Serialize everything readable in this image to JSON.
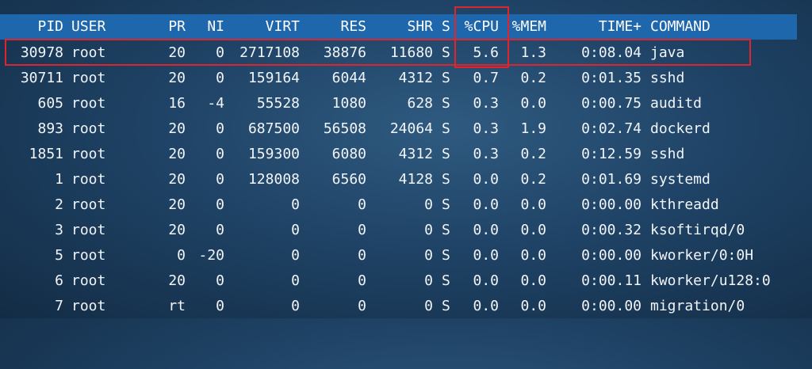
{
  "top": {
    "headers": {
      "pid": "PID",
      "user": "USER",
      "pr": "PR",
      "ni": "NI",
      "virt": "VIRT",
      "res": "RES",
      "shr": "SHR",
      "s": "S",
      "cpu": "%CPU",
      "mem": "%MEM",
      "time": "TIME+",
      "command": "COMMAND"
    },
    "rows": [
      {
        "pid": "30978",
        "user": "root",
        "pr": "20",
        "ni": "0",
        "virt": "2717108",
        "res": "38876",
        "shr": "11680",
        "s": "S",
        "cpu": "5.6",
        "mem": "1.3",
        "time": "0:08.04",
        "command": "java"
      },
      {
        "pid": "30711",
        "user": "root",
        "pr": "20",
        "ni": "0",
        "virt": "159164",
        "res": "6044",
        "shr": "4312",
        "s": "S",
        "cpu": "0.7",
        "mem": "0.2",
        "time": "0:01.35",
        "command": "sshd"
      },
      {
        "pid": "605",
        "user": "root",
        "pr": "16",
        "ni": "-4",
        "virt": "55528",
        "res": "1080",
        "shr": "628",
        "s": "S",
        "cpu": "0.3",
        "mem": "0.0",
        "time": "0:00.75",
        "command": "auditd"
      },
      {
        "pid": "893",
        "user": "root",
        "pr": "20",
        "ni": "0",
        "virt": "687500",
        "res": "56508",
        "shr": "24064",
        "s": "S",
        "cpu": "0.3",
        "mem": "1.9",
        "time": "0:02.74",
        "command": "dockerd"
      },
      {
        "pid": "1851",
        "user": "root",
        "pr": "20",
        "ni": "0",
        "virt": "159300",
        "res": "6080",
        "shr": "4312",
        "s": "S",
        "cpu": "0.3",
        "mem": "0.2",
        "time": "0:12.59",
        "command": "sshd"
      },
      {
        "pid": "1",
        "user": "root",
        "pr": "20",
        "ni": "0",
        "virt": "128008",
        "res": "6560",
        "shr": "4128",
        "s": "S",
        "cpu": "0.0",
        "mem": "0.2",
        "time": "0:01.69",
        "command": "systemd"
      },
      {
        "pid": "2",
        "user": "root",
        "pr": "20",
        "ni": "0",
        "virt": "0",
        "res": "0",
        "shr": "0",
        "s": "S",
        "cpu": "0.0",
        "mem": "0.0",
        "time": "0:00.00",
        "command": "kthreadd"
      },
      {
        "pid": "3",
        "user": "root",
        "pr": "20",
        "ni": "0",
        "virt": "0",
        "res": "0",
        "shr": "0",
        "s": "S",
        "cpu": "0.0",
        "mem": "0.0",
        "time": "0:00.32",
        "command": "ksoftirqd/0"
      },
      {
        "pid": "5",
        "user": "root",
        "pr": "0",
        "ni": "-20",
        "virt": "0",
        "res": "0",
        "shr": "0",
        "s": "S",
        "cpu": "0.0",
        "mem": "0.0",
        "time": "0:00.00",
        "command": "kworker/0:0H"
      },
      {
        "pid": "6",
        "user": "root",
        "pr": "20",
        "ni": "0",
        "virt": "0",
        "res": "0",
        "shr": "0",
        "s": "S",
        "cpu": "0.0",
        "mem": "0.0",
        "time": "0:00.11",
        "command": "kworker/u128:0"
      },
      {
        "pid": "7",
        "user": "root",
        "pr": "rt",
        "ni": "0",
        "virt": "0",
        "res": "0",
        "shr": "0",
        "s": "S",
        "cpu": "0.0",
        "mem": "0.0",
        "time": "0:00.00",
        "command": "migration/0"
      }
    ]
  },
  "colors": {
    "header_bg": "#1f67ad",
    "annotation": "#e0242c",
    "text": "#f2f5f8"
  }
}
